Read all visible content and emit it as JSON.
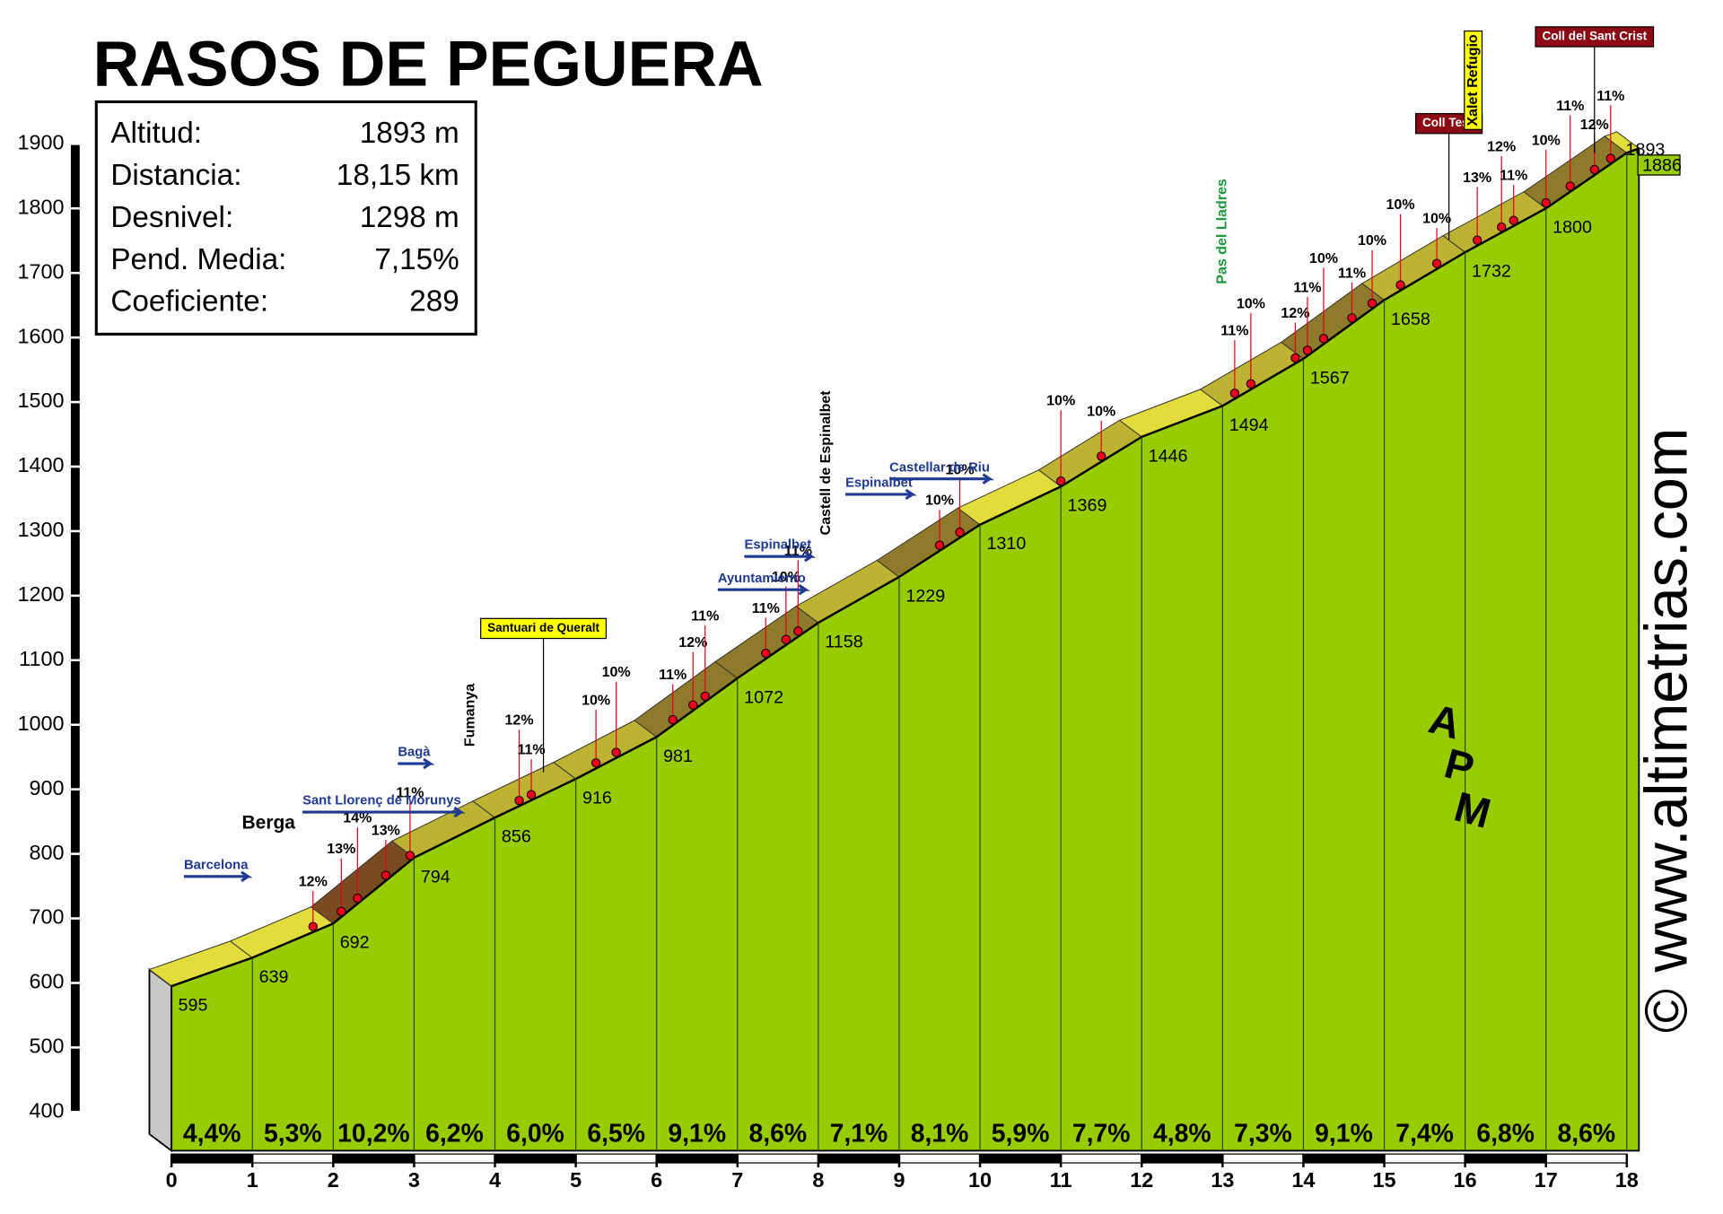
{
  "chart_data": {
    "type": "profile",
    "title": "RASOS DE PEGUERA",
    "stats": [
      [
        "Altitud:",
        "1893 m"
      ],
      [
        "Distancia:",
        "18,15 km"
      ],
      [
        "Desnivel:",
        "1298 m"
      ],
      [
        "Pend. Media:",
        "7,15%"
      ],
      [
        "Coeficiente:",
        "289"
      ]
    ],
    "x": [
      0,
      1,
      2,
      3,
      4,
      5,
      6,
      7,
      8,
      9,
      10,
      11,
      12,
      13,
      14,
      15,
      16,
      17,
      18,
      18.15
    ],
    "values": [
      595,
      639,
      692,
      794,
      856,
      916,
      981,
      1072,
      1158,
      1229,
      1310,
      1369,
      1446,
      1494,
      1567,
      1658,
      1732,
      1800,
      1886,
      1893
    ],
    "gradients": {
      "values": [
        4.4,
        5.3,
        10.2,
        6.2,
        6.0,
        6.5,
        9.1,
        8.6,
        7.1,
        8.1,
        5.9,
        7.7,
        4.8,
        7.3,
        9.1,
        7.4,
        6.8,
        8.6
      ],
      "value_labels": [
        "4,4%",
        "5,3%",
        "10,2%",
        "6,2%",
        "6,0%",
        "6,5%",
        "9,1%",
        "8,6%",
        "7,1%",
        "8,1%",
        "5,9%",
        "7,7%",
        "4,8%",
        "7,3%",
        "9,1%",
        "7,4%",
        "6,8%",
        "8,6%"
      ]
    },
    "steep": {
      "x": [
        1.75,
        2.1,
        2.3,
        2.65,
        2.95,
        4.3,
        4.45,
        5.25,
        5.5,
        6.2,
        6.45,
        6.6,
        7.35,
        7.6,
        7.75,
        9.5,
        9.75,
        11.0,
        11.5,
        13.15,
        13.35,
        13.9,
        14.05,
        14.25,
        14.6,
        14.85,
        15.2,
        15.65,
        16.15,
        16.45,
        16.6,
        17.0,
        17.3,
        17.6,
        17.8
      ],
      "values": [
        12,
        13,
        14,
        13,
        11,
        12,
        11,
        10,
        10,
        11,
        12,
        11,
        11,
        10,
        11,
        10,
        10,
        10,
        10,
        11,
        10,
        12,
        11,
        10,
        11,
        10,
        10,
        10,
        13,
        12,
        11,
        10,
        11,
        12,
        11
      ],
      "value_labels": [
        "12%",
        "13%",
        "14%",
        "13%",
        "11%",
        "12%",
        "11%",
        "10%",
        "10%",
        "11%",
        "12%",
        "11%",
        "11%",
        "10%",
        "11%",
        "10%",
        "10%",
        "10%",
        "10%",
        "11%",
        "10%",
        "12%",
        "11%",
        "10%",
        "11%",
        "10%",
        "10%",
        "10%",
        "13%",
        "12%",
        "11%",
        "10%",
        "11%",
        "12%",
        "11%"
      ]
    },
    "places": [
      {
        "text": "Barcelona",
        "x": 0.55,
        "kind": "sign"
      },
      {
        "text": "Berga",
        "x": 1.2,
        "kind": "bold"
      },
      {
        "text": "Bagà",
        "x": 3.0,
        "kind": "sign"
      },
      {
        "text": "Sant Llorenç de Morunys",
        "x": 2.6,
        "kind": "sign-low"
      },
      {
        "text": "Fumanya",
        "x": 3.7,
        "kind": "vertical"
      },
      {
        "text": "Santuari de Queralt",
        "x": 4.6,
        "kind": "yellow-box"
      },
      {
        "text": "Ayuntamiento",
        "x": 7.3,
        "kind": "sign-low"
      },
      {
        "text": "Espinalbet",
        "x": 7.5,
        "kind": "sign"
      },
      {
        "text": "Castell de Espinalbet",
        "x": 8.1,
        "kind": "vertical"
      },
      {
        "text": "Espinalbet",
        "x": 8.75,
        "kind": "sign"
      },
      {
        "text": "Castellar de Riu",
        "x": 9.5,
        "kind": "sign-low"
      },
      {
        "text": "Pas del Lladres",
        "x": 13.0,
        "kind": "vertical-green"
      },
      {
        "text": "Coll Tesà",
        "x": 15.8,
        "kind": "red-box"
      },
      {
        "text": "Xalet Refugio",
        "x": 16.1,
        "kind": "vertical-yellow"
      },
      {
        "text": "Coll del Sant Crist",
        "x": 17.6,
        "kind": "red-box"
      }
    ],
    "xlim": [
      0,
      18.15
    ],
    "xticks": [
      0,
      1,
      2,
      3,
      4,
      5,
      6,
      7,
      8,
      9,
      10,
      11,
      12,
      13,
      14,
      15,
      16,
      17,
      18
    ],
    "ylim": [
      400,
      1900
    ],
    "yticks": [
      400,
      500,
      600,
      700,
      800,
      900,
      1000,
      1100,
      1200,
      1300,
      1400,
      1500,
      1600,
      1700,
      1800,
      1900
    ],
    "colors": {
      "front": "#99cc00",
      "side": "#c8c8c8",
      "easy": "#e2dc3c",
      "medium": "#bdb232",
      "hard": "#8f7a2c",
      "steep": "#7a4a20",
      "dot": "#e8001c"
    },
    "copyright": "© www.altimetrias.com",
    "logo_letters": [
      "A",
      "P",
      "M"
    ]
  }
}
